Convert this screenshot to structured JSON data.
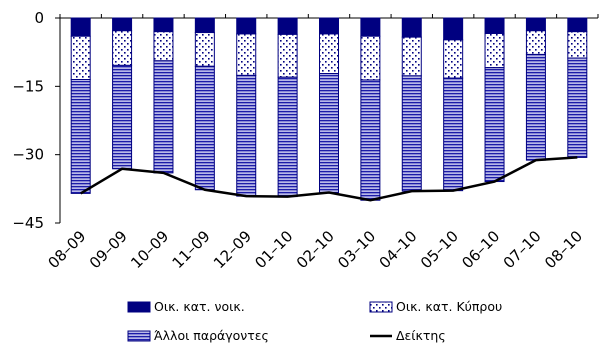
{
  "chart_data": {
    "type": "bar",
    "stacked": true,
    "title": "",
    "xlabel": "",
    "ylabel": "",
    "ylim": [
      -45,
      0
    ],
    "yticks": [
      0,
      -15,
      -30,
      -45
    ],
    "yticklabels": [
      "0",
      "−15",
      "−30",
      "−45"
    ],
    "grid": false,
    "legend_position": "bottom",
    "categories": [
      "08–09",
      "09–09",
      "10–09",
      "11–09",
      "12–09",
      "01–10",
      "02–10",
      "03–10",
      "04–10",
      "05–10",
      "06–10",
      "07–10",
      "08–10"
    ],
    "series": [
      {
        "name": "Οικ. κατ. νοικ.",
        "kind": "bar",
        "color": "#000080",
        "pattern": "solid",
        "values": [
          -4.0,
          -2.8,
          -3.0,
          -3.2,
          -3.5,
          -3.6,
          -3.5,
          -4.0,
          -4.2,
          -4.8,
          -3.4,
          -2.8,
          -3.0
        ]
      },
      {
        "name": "Οικ. κατ. Κύπρου",
        "kind": "bar",
        "color": "#000080",
        "pattern": "dots",
        "values": [
          -9.5,
          -7.6,
          -6.4,
          -7.4,
          -9.1,
          -9.4,
          -8.7,
          -9.6,
          -8.5,
          -8.4,
          -7.5,
          -5.2,
          -5.8
        ]
      },
      {
        "name": "Άλλοι παράγοντες",
        "kind": "bar",
        "color": "#000080",
        "pattern": "stripes",
        "values": [
          -25.0,
          -22.7,
          -24.6,
          -27.1,
          -26.5,
          -26.2,
          -26.1,
          -26.4,
          -25.3,
          -24.7,
          -25.0,
          -23.2,
          -21.8
        ]
      },
      {
        "name": "Δείκτης",
        "kind": "line",
        "color": "#000000",
        "values": [
          -38.5,
          -33.1,
          -34.0,
          -37.7,
          -39.1,
          -39.2,
          -38.3,
          -40.0,
          -38.0,
          -37.9,
          -35.9,
          -31.2,
          -30.6
        ]
      }
    ]
  }
}
